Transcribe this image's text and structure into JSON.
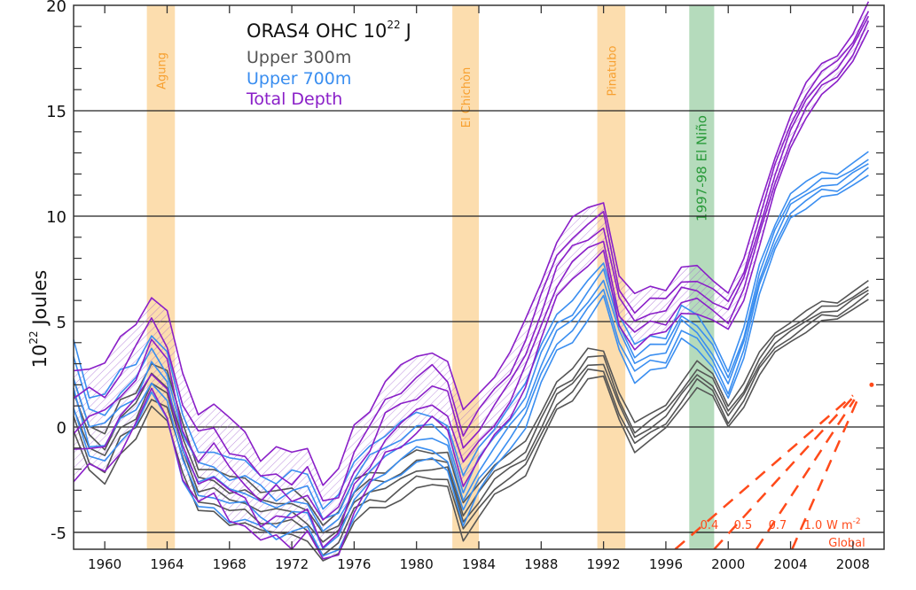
{
  "chart_data": {
    "type": "line",
    "title": "ORAS4  OHC  10",
    "title_superscript": "22",
    "title_unit": "J",
    "ylabel_base": "10",
    "ylabel_superscript": "22",
    "ylabel_text": " Joules",
    "xlim": [
      1958,
      2010
    ],
    "ylim": [
      -5.8,
      20
    ],
    "x_ticks": [
      1960,
      1964,
      1968,
      1972,
      1976,
      1980,
      1984,
      1988,
      1992,
      1996,
      2000,
      2004,
      2008
    ],
    "x_tick_labels": [
      "1960",
      "1964",
      "1968",
      "1972",
      "1976",
      "1980",
      "1984",
      "1988",
      "1992",
      "1996",
      "2000",
      "2004",
      "2008"
    ],
    "y_ticks": [
      20,
      15,
      10,
      5,
      0,
      -5
    ],
    "y_tick_labels": [
      "20",
      "15",
      "10",
      "5",
      "0",
      "-5"
    ],
    "grid": "horizontal at major y ticks",
    "legend_placement": "top-center",
    "bands": [
      {
        "label": "Agung",
        "start": 1962.7,
        "end": 1964.5,
        "color": "#fbd7a0",
        "text_color": "#f7a030"
      },
      {
        "label": "El Chichòn",
        "start": 1982.3,
        "end": 1984.0,
        "color": "#fbd7a0",
        "text_color": "#f7a030"
      },
      {
        "label": "Pinatubo",
        "start": 1991.6,
        "end": 1993.4,
        "color": "#fbd7a0",
        "text_color": "#f7a030"
      },
      {
        "label": "1997-98 El Niño",
        "start": 1997.5,
        "end": 1999.1,
        "color": "#a8d5b0",
        "text_color": "#2a9a3a"
      }
    ],
    "x": [
      1958,
      1959,
      1960,
      1961,
      1962,
      1963,
      1964,
      1965,
      1966,
      1967,
      1968,
      1969,
      1970,
      1971,
      1972,
      1973,
      1974,
      1975,
      1976,
      1977,
      1978,
      1979,
      1980,
      1981,
      1982,
      1983,
      1984,
      1985,
      1986,
      1987,
      1988,
      1989,
      1990,
      1991,
      1992,
      1993,
      1994,
      1995,
      1996,
      1997,
      1998,
      1999,
      2000,
      2001,
      2002,
      2003,
      2004,
      2005,
      2006,
      2007,
      2008,
      2009
    ],
    "series": [
      {
        "name": "Upper 300m",
        "color": "#555555",
        "spread": [
          1.2,
          0.4
        ],
        "values": [
          1,
          -1,
          -1.5,
          0,
          0.5,
          2,
          1.5,
          -1,
          -3,
          -3,
          -3.5,
          -3.5,
          -4,
          -4,
          -4,
          -4.5,
          -5.5,
          -5,
          -3.5,
          -3,
          -3,
          -2.5,
          -2,
          -2,
          -2,
          -4.5,
          -3.5,
          -2.5,
          -2,
          -1.5,
          0,
          1.5,
          2,
          3,
          3,
          1,
          -0.5,
          0,
          0.5,
          1.5,
          2.5,
          2,
          0.5,
          1.5,
          3,
          4,
          4.5,
          5,
          5.5,
          5.5,
          6,
          6.5
        ]
      },
      {
        "name": "Upper 700m",
        "color": "#3a8ef0",
        "spread": [
          1.6,
          0.5
        ],
        "values": [
          2.5,
          0,
          0,
          1,
          1.5,
          3,
          2,
          -1,
          -2.5,
          -2.5,
          -3,
          -3,
          -3.5,
          -4,
          -3.5,
          -3.5,
          -5,
          -4.5,
          -3,
          -2,
          -1.5,
          -1,
          -0.5,
          -0.5,
          -1,
          -3.5,
          -2,
          -1,
          0,
          1,
          3,
          4.5,
          5,
          6,
          7,
          4.5,
          3,
          3.5,
          3.5,
          5,
          4.5,
          3.5,
          2,
          4,
          7,
          9,
          10.5,
          11,
          11.5,
          11.5,
          12,
          12.5
        ]
      },
      {
        "name": "Total Depth",
        "color": "#8a1fc8",
        "spread": [
          2.6,
          0.6
        ],
        "values": [
          0,
          0.5,
          0.5,
          1.5,
          2.5,
          4,
          3,
          0,
          -1.5,
          -1,
          -2,
          -2.5,
          -3.5,
          -3,
          -3.5,
          -3,
          -4.5,
          -4,
          -2,
          -1,
          0.5,
          1,
          1.5,
          2,
          1.5,
          -1,
          0,
          1,
          2,
          3.5,
          5.5,
          7.5,
          8.5,
          9,
          9.5,
          6,
          5,
          5.5,
          5.5,
          6.5,
          6.5,
          6,
          5.5,
          7,
          9.5,
          12,
          14,
          15.5,
          16.5,
          17,
          18,
          19.5
        ]
      }
    ],
    "reference_lines": {
      "color": "#ff4a1a",
      "unit_label": "W m",
      "unit_superscript": "-2",
      "region_label": "Global",
      "lines": [
        {
          "label": "0.4",
          "start": [
            1996.6,
            -5.8
          ],
          "end": [
            2008.0,
            1.5
          ]
        },
        {
          "label": "0.5",
          "start": [
            1999.1,
            -5.8
          ],
          "end": [
            2008.0,
            1.4
          ]
        },
        {
          "label": "0.7",
          "start": [
            2001.8,
            -5.8
          ],
          "end": [
            2008.1,
            1.3
          ]
        },
        {
          "label": "1.0",
          "start": [
            2004.1,
            -5.8
          ],
          "end": [
            2008.3,
            1.3
          ]
        }
      ],
      "end_marker": [
        2009.2,
        2.0
      ]
    }
  }
}
